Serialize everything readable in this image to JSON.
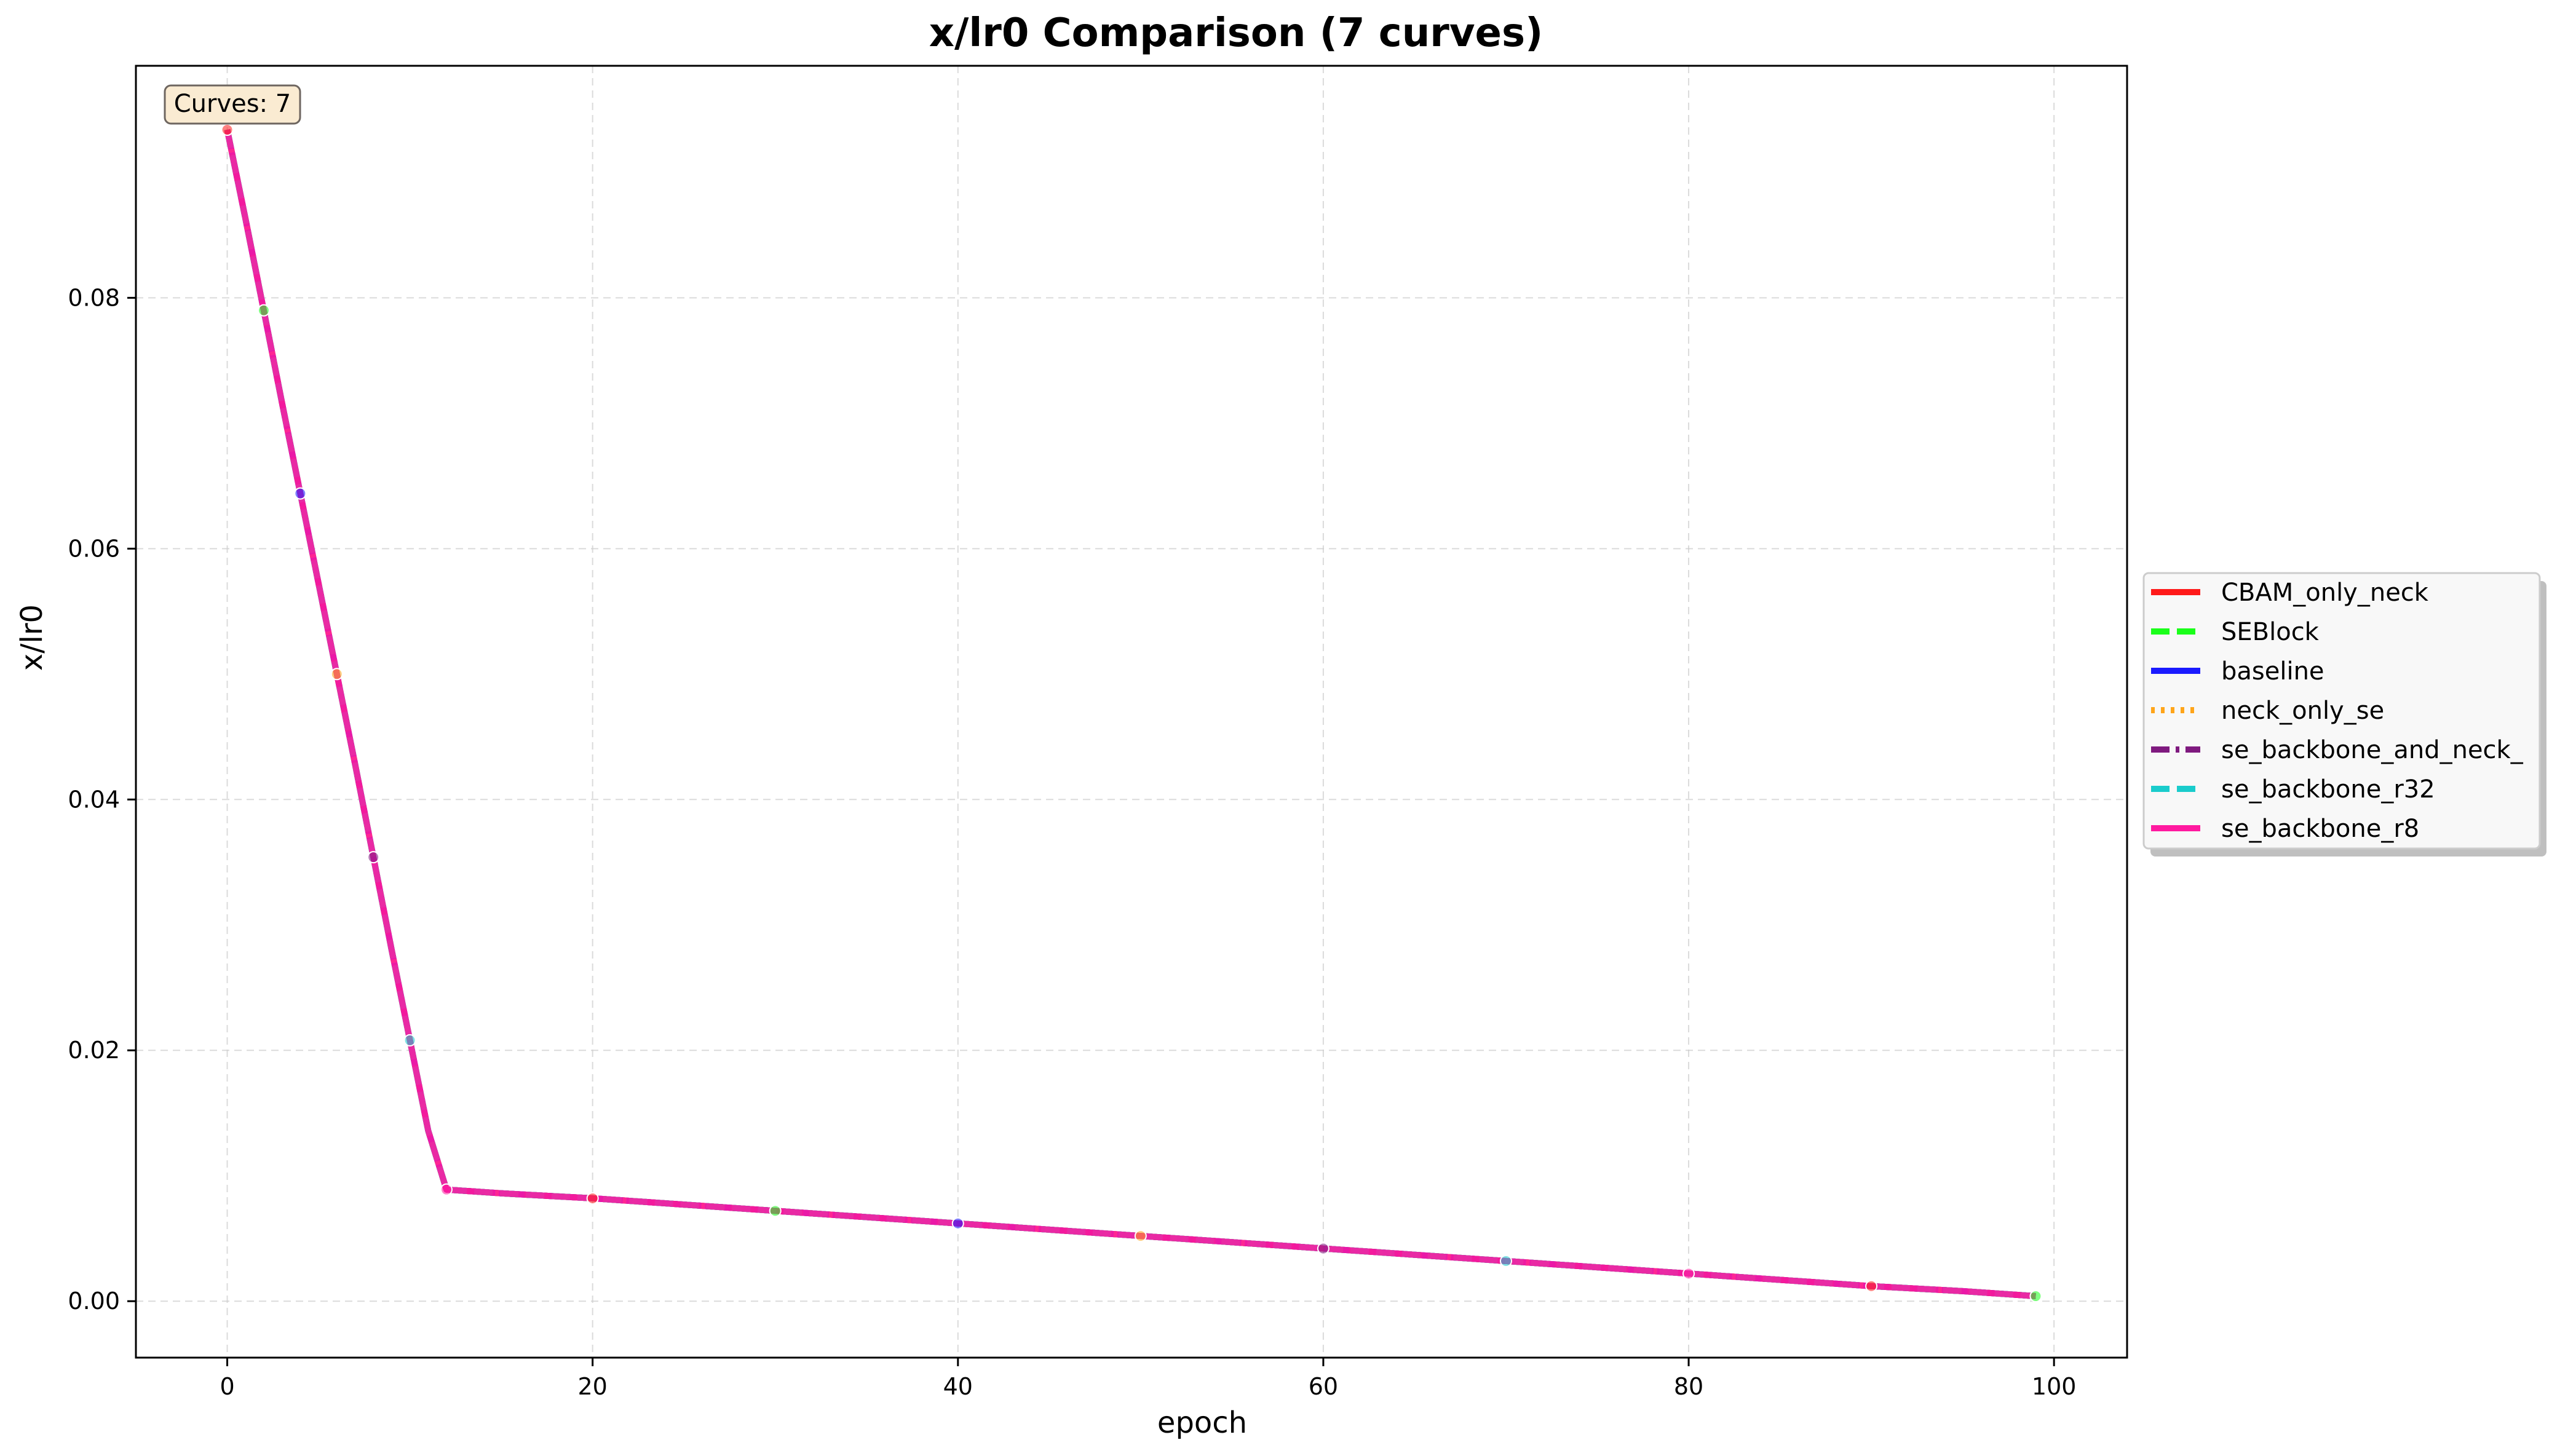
{
  "chart_data": {
    "type": "line",
    "title": "x/lr0 Comparison (7 curves)",
    "xlabel": "epoch",
    "ylabel": "x/lr0",
    "xlim": [
      -5,
      104
    ],
    "ylim": [
      -0.0045,
      0.0985
    ],
    "x_ticks": [
      0,
      20,
      40,
      60,
      80,
      100
    ],
    "x_tick_labels": [
      "0",
      "20",
      "40",
      "60",
      "80",
      "100"
    ],
    "y_ticks": [
      0.0,
      0.02,
      0.04,
      0.06,
      0.08
    ],
    "y_tick_labels": [
      "0.00",
      "0.02",
      "0.04",
      "0.06",
      "0.08"
    ],
    "grid": true,
    "legend_position": "outside-right",
    "annotation": "Curves: 7",
    "x": [
      0,
      1,
      2,
      3,
      4,
      5,
      6,
      7,
      8,
      9,
      10,
      11,
      12,
      15,
      20,
      25,
      30,
      35,
      40,
      45,
      50,
      55,
      60,
      65,
      70,
      75,
      80,
      85,
      90,
      95,
      99
    ],
    "series": [
      {
        "name": "CBAM_only_neck",
        "color": "#ff1a1a",
        "dash": "solid",
        "marker": "circle"
      },
      {
        "name": "SEBlock",
        "color": "#1aff1a",
        "dash": "dashed",
        "marker": "square"
      },
      {
        "name": "baseline",
        "color": "#1a1aff",
        "dash": "solid",
        "marker": "triangle"
      },
      {
        "name": "neck_only_se",
        "color": "#ffa51a",
        "dash": "dotted",
        "marker": "diamond"
      },
      {
        "name": "se_backbone_and_neck_",
        "color": "#7f1a7f",
        "dash": "dashdot",
        "marker": "triangle-down"
      },
      {
        "name": "se_backbone_r32",
        "color": "#1acccc",
        "dash": "dashed",
        "marker": "plus"
      },
      {
        "name": "se_backbone_r8",
        "color": "#ff1aa0",
        "dash": "solid",
        "marker": "star"
      }
    ],
    "values": [
      0.0934,
      0.0863,
      0.079,
      0.0716,
      0.0644,
      0.0572,
      0.05,
      0.0428,
      0.0354,
      0.028,
      0.0208,
      0.0136,
      0.0089,
      0.0086,
      0.0082,
      0.0077,
      0.0072,
      0.0067,
      0.0062,
      0.0057,
      0.0052,
      0.0047,
      0.0042,
      0.0037,
      0.0032,
      0.0027,
      0.0022,
      0.0017,
      0.0012,
      0.0008,
      0.0004
    ]
  }
}
